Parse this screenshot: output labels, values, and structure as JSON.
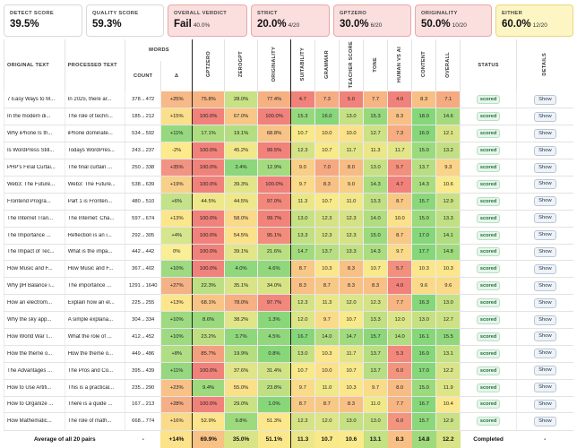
{
  "cards": [
    {
      "label": "DETECT SCORE",
      "value": "39.5%",
      "sub": "",
      "tone": "white"
    },
    {
      "label": "QUALITY SCORE",
      "value": "59.3%",
      "sub": "",
      "tone": "white"
    },
    {
      "label": "OVERALL VERDICT",
      "value": "Fail",
      "sub": "40.0%",
      "tone": "red"
    },
    {
      "label": "STRICT",
      "value": "20.0%",
      "sub": "4/20",
      "tone": "red"
    },
    {
      "label": "GPTZERO",
      "value": "30.0%",
      "sub": "6/20",
      "tone": "red"
    },
    {
      "label": "ORIGINALITY",
      "value": "50.0%",
      "sub": "10/20",
      "tone": "red"
    },
    {
      "label": "EITHER",
      "value": "60.0%",
      "sub": "12/20",
      "tone": "yellow"
    }
  ],
  "headers": {
    "original": "ORIGINAL TEXT",
    "processed": "PROCESSED TEXT",
    "words": "WORDS",
    "count": "COUNT",
    "delta": "Δ",
    "gptzero": "GPTZERO",
    "zerogpt": "ZEROGPT",
    "originality": "ORIGINALITY",
    "suitability": "SUITABILITY",
    "grammar": "GRAMMAR",
    "teacher": "TEACHER SCORE",
    "tone": "TONE",
    "human": "HUMAN VS AI",
    "content": "CONTENT",
    "overall": "OVERALL",
    "status": "STATUS",
    "details": "DETAILS"
  },
  "rows": [
    {
      "orig": "7 Easy Ways to M...",
      "proc": "In 2025, there ar...",
      "count": "378→472",
      "delta": "+25%",
      "m": [
        "75.8%",
        "28.0%",
        "77.4%",
        "4.7",
        "7.3",
        "5.0",
        "7.7",
        "4.0",
        "8.3",
        "7.1"
      ],
      "status": "scored",
      "btn": "Show"
    },
    {
      "orig": "In the modern di...",
      "proc": "The role of techn...",
      "count": "185→212",
      "delta": "+15%",
      "m": [
        "100.0%",
        "67.0%",
        "100.0%",
        "15.3",
        "16.0",
        "13.0",
        "15.3",
        "8.3",
        "18.0",
        "14.6"
      ],
      "status": "scored",
      "btn": "Show"
    },
    {
      "orig": "Why iPhone Is th...",
      "proc": "iPhone dominate...",
      "count": "534→592",
      "delta": "+11%",
      "m": [
        "17.1%",
        "19.1%",
        "68.8%",
        "10.7",
        "10.0",
        "10.0",
        "12.7",
        "7.3",
        "16.0",
        "12.1"
      ],
      "status": "scored",
      "btn": "Show"
    },
    {
      "orig": "Is WordPress Still...",
      "proc": "Todays WordPres...",
      "count": "243→237",
      "delta": "-2%",
      "m": [
        "100.0%",
        "45.2%",
        "99.5%",
        "12.3",
        "10.7",
        "11.7",
        "11.3",
        "11.7",
        "15.0",
        "13.2"
      ],
      "status": "scored",
      "btn": "Show"
    },
    {
      "orig": "PHP's Final Curtai...",
      "proc": "The final curtain ...",
      "count": "250→338",
      "delta": "+35%",
      "m": [
        "100.0%",
        "2.4%",
        "12.9%",
        "9.0",
        "7.0",
        "8.0",
        "13.0",
        "5.7",
        "13.7",
        "9.3"
      ],
      "status": "scored",
      "btn": "Show"
    },
    {
      "orig": "Web3: The Future...",
      "proc": "Web3: The Future...",
      "count": "538→639",
      "delta": "+19%",
      "m": [
        "100.0%",
        "39.3%",
        "100.0%",
        "9.7",
        "8.3",
        "9.0",
        "14.3",
        "4.7",
        "14.3",
        "10.6"
      ],
      "status": "scored",
      "btn": "Show"
    },
    {
      "orig": "Frontend Progra...",
      "proc": "Part 1 is Fronten...",
      "count": "480→510",
      "delta": "+6%",
      "m": [
        "44.5%",
        "44.5%",
        "97.0%",
        "11.3",
        "10.7",
        "11.0",
        "13.3",
        "8.7",
        "15.7",
        "12.9"
      ],
      "status": "scored",
      "btn": "Show"
    },
    {
      "orig": "The Internet Tran...",
      "proc": "The Internet: Cha...",
      "count": "597→674",
      "delta": "+13%",
      "m": [
        "100.0%",
        "58.0%",
        "99.7%",
        "13.0",
        "12.3",
        "12.3",
        "14.0",
        "10.0",
        "15.0",
        "13.3"
      ],
      "status": "scored",
      "btn": "Show"
    },
    {
      "orig": "The Importance ...",
      "proc": "Reflection is an i...",
      "count": "292→305",
      "delta": "+4%",
      "m": [
        "100.0%",
        "54.5%",
        "95.1%",
        "13.3",
        "12.3",
        "12.3",
        "15.0",
        "8.7",
        "17.0",
        "14.1"
      ],
      "status": "scored",
      "btn": "Show"
    },
    {
      "orig": "The Impact of Tec...",
      "proc": "What is the impa...",
      "count": "442→442",
      "delta": "0%",
      "m": [
        "100.0%",
        "39.1%",
        "21.6%",
        "14.7",
        "13.7",
        "13.3",
        "14.3",
        "9.7",
        "17.7",
        "14.8"
      ],
      "status": "scored",
      "btn": "Show"
    },
    {
      "orig": "How Music and F...",
      "proc": "How Music and F...",
      "count": "367→402",
      "delta": "+10%",
      "m": [
        "100.0%",
        "4.0%",
        "4.6%",
        "8.7",
        "10.3",
        "8.3",
        "10.7",
        "5.7",
        "10.3",
        "10.3"
      ],
      "status": "scored",
      "btn": "Show"
    },
    {
      "orig": "Why pH Balance i...",
      "proc": "The importance ...",
      "count": "1291→1640",
      "delta": "+27%",
      "m": [
        "22.3%",
        "35.1%",
        "34.0%",
        "8.3",
        "8.7",
        "8.3",
        "8.3",
        "4.0",
        "9.6",
        "9.6"
      ],
      "status": "scored",
      "btn": "Show"
    },
    {
      "orig": "How an electrom...",
      "proc": "Explain how an el...",
      "count": "225→255",
      "delta": "+13%",
      "m": [
        "68.1%",
        "78.0%",
        "97.7%",
        "12.3",
        "11.3",
        "12.0",
        "12.3",
        "7.7",
        "16.3",
        "13.0"
      ],
      "status": "scored",
      "btn": "Show"
    },
    {
      "orig": "Why the sky app...",
      "proc": "A simple explana...",
      "count": "304→334",
      "delta": "+10%",
      "m": [
        "8.6%",
        "38.2%",
        "1.3%",
        "12.0",
        "9.7",
        "10.7",
        "13.3",
        "12.0",
        "13.0",
        "12.7"
      ],
      "status": "scored",
      "btn": "Show"
    },
    {
      "orig": "How World War I...",
      "proc": "What the role of ...",
      "count": "412→452",
      "delta": "+10%",
      "m": [
        "23.2%",
        "3.7%",
        "4.5%",
        "16.7",
        "14.0",
        "14.7",
        "15.7",
        "14.0",
        "16.1",
        "15.5"
      ],
      "status": "scored",
      "btn": "Show"
    },
    {
      "orig": "How the theme o...",
      "proc": "How the theme o...",
      "count": "449→486",
      "delta": "+8%",
      "m": [
        "85.7%",
        "19.9%",
        "0.8%",
        "13.0",
        "10.3",
        "11.7",
        "13.7",
        "5.3",
        "16.0",
        "13.1"
      ],
      "status": "scored",
      "btn": "Show"
    },
    {
      "orig": "The Advantages ...",
      "proc": "The Pros and Co...",
      "count": "395→439",
      "delta": "+11%",
      "m": [
        "100.0%",
        "37.6%",
        "31.4%",
        "10.7",
        "10.0",
        "10.7",
        "13.7",
        "6.0",
        "17.0",
        "12.2"
      ],
      "status": "scored",
      "btn": "Show"
    },
    {
      "orig": "How to Use Artifi...",
      "proc": "This is a practical...",
      "count": "235→290",
      "delta": "+23%",
      "m": [
        "9.4%",
        "55.0%",
        "23.8%",
        "9.7",
        "11.0",
        "10.3",
        "9.7",
        "8.0",
        "15.0",
        "11.9"
      ],
      "status": "scored",
      "btn": "Show"
    },
    {
      "orig": "How to Organize ...",
      "proc": "There is a quide ...",
      "count": "167→213",
      "delta": "+28%",
      "m": [
        "100.0%",
        "29.0%",
        "1.0%",
        "8.7",
        "8.7",
        "8.3",
        "11.0",
        "7.7",
        "16.7",
        "10.4"
      ],
      "status": "scored",
      "btn": "Show"
    },
    {
      "orig": "How Mathematic...",
      "proc": "The role of math...",
      "count": "668→774",
      "delta": "+16%",
      "m": [
        "52.9%",
        "9.8%",
        "51.3%",
        "12.3",
        "12.0",
        "13.0",
        "13.0",
        "6.0",
        "15.7",
        "12.9"
      ],
      "status": "scored",
      "btn": "Show"
    }
  ],
  "footer": {
    "label": "Average of all 20 pairs",
    "count": "-",
    "delta": "+14%",
    "m": [
      "69.9%",
      "35.0%",
      "51.1%",
      "11.3",
      "10.7",
      "10.6",
      "13.1",
      "8.3",
      "14.8",
      "12.2"
    ],
    "status": "Completed",
    "details": "-"
  }
}
